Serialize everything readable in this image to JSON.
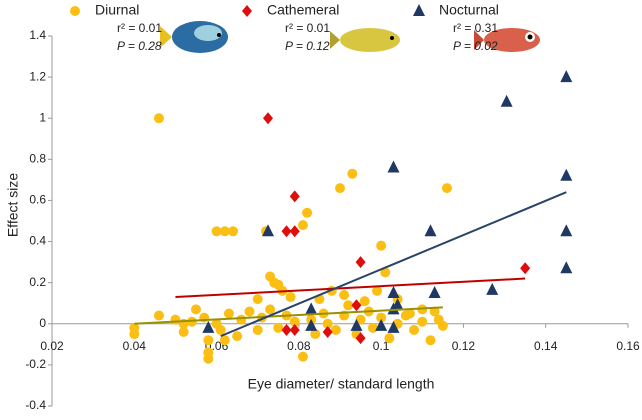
{
  "chart_data": {
    "type": "scatter",
    "x_label": "Eye diameter/ standard length",
    "y_label": "Effect size",
    "xlim": [
      0.02,
      0.16
    ],
    "xticks": [
      0.02,
      0.04,
      0.06,
      0.08,
      0.1,
      0.12,
      0.14,
      0.16
    ],
    "ylim": [
      -0.4,
      1.4
    ],
    "yticks": [
      -0.4,
      -0.2,
      0,
      0.2,
      0.4,
      0.6,
      0.8,
      1,
      1.2,
      1.4
    ],
    "grid": false,
    "series": [
      {
        "name": "Diurnal",
        "color": "#fbbf14",
        "marker": "circle",
        "line_color": "#9a9000",
        "annotations": [
          "r² = 0.01",
          "P = 0.28"
        ],
        "x": [
          0.046,
          0.06,
          0.062,
          0.064,
          0.072,
          0.073,
          0.074,
          0.075,
          0.076,
          0.081,
          0.082,
          0.09,
          0.093,
          0.1,
          0.101,
          0.116,
          0.07,
          0.078,
          0.085,
          0.088,
          0.091,
          0.096,
          0.099,
          0.104,
          0.11,
          0.113,
          0.107,
          0.04,
          0.04,
          0.046,
          0.05,
          0.052,
          0.052,
          0.055,
          0.057,
          0.058,
          0.058,
          0.058,
          0.06,
          0.061,
          0.063,
          0.065,
          0.066,
          0.068,
          0.07,
          0.071,
          0.073,
          0.075,
          0.077,
          0.079,
          0.081,
          0.083,
          0.084,
          0.086,
          0.087,
          0.089,
          0.091,
          0.092,
          0.094,
          0.095,
          0.097,
          0.098,
          0.1,
          0.102,
          0.104,
          0.106,
          0.108,
          0.11,
          0.112,
          0.114,
          0.115,
          0.054,
          0.062
        ],
        "values": [
          1.0,
          0.45,
          0.45,
          0.45,
          0.45,
          0.23,
          0.2,
          0.19,
          0.16,
          0.48,
          0.54,
          0.66,
          0.73,
          0.38,
          0.25,
          0.66,
          0.12,
          0.13,
          0.12,
          0.16,
          0.14,
          0.11,
          0.16,
          0.12,
          0.07,
          0.06,
          0.05,
          -0.02,
          -0.05,
          0.04,
          0.02,
          0.0,
          -0.04,
          0.07,
          0.03,
          -0.14,
          -0.17,
          -0.08,
          0.0,
          -0.03,
          0.05,
          -0.06,
          0.02,
          0.06,
          -0.03,
          0.03,
          0.07,
          -0.02,
          0.04,
          0.01,
          -0.16,
          0.02,
          -0.05,
          0.05,
          0.0,
          -0.03,
          0.04,
          0.09,
          -0.05,
          0.02,
          0.06,
          -0.02,
          0.03,
          -0.07,
          0.0,
          0.04,
          -0.03,
          0.01,
          -0.08,
          0.02,
          -0.01,
          0.01,
          -0.08
        ],
        "trend": {
          "x": [
            0.04,
            0.115
          ],
          "values": [
            0.0,
            0.08
          ]
        }
      },
      {
        "name": "Cathemeral",
        "color": "#e00d0d",
        "marker": "diamond",
        "line_color": "#c00000",
        "annotations": [
          "r² = 0.01",
          "P = 0.12"
        ],
        "x": [
          0.0725,
          0.079,
          0.077,
          0.079,
          0.095,
          0.135,
          0.077,
          0.079,
          0.087,
          0.095,
          0.094
        ],
        "values": [
          1.0,
          0.62,
          0.45,
          0.45,
          0.3,
          0.27,
          -0.03,
          -0.03,
          -0.04,
          -0.07,
          0.09
        ],
        "trend": {
          "x": [
            0.05,
            0.135
          ],
          "values": [
            0.13,
            0.22
          ]
        }
      },
      {
        "name": "Nocturnal",
        "color": "#1f3864",
        "marker": "triangle",
        "line_color": "#2a4468",
        "annotations": [
          "r² = 0.31",
          "P = 0.02"
        ],
        "x": [
          0.058,
          0.0725,
          0.083,
          0.083,
          0.094,
          0.1,
          0.103,
          0.103,
          0.103,
          0.103,
          0.104,
          0.112,
          0.113,
          0.127,
          0.1305,
          0.145,
          0.145,
          0.145,
          0.145
        ],
        "values": [
          -0.02,
          0.45,
          -0.01,
          0.07,
          -0.01,
          -0.01,
          0.76,
          0.15,
          0.07,
          -0.02,
          0.09,
          0.45,
          0.15,
          0.165,
          1.08,
          1.2,
          0.72,
          0.45,
          0.27
        ],
        "trend": {
          "x": [
            0.061,
            0.145
          ],
          "values": [
            -0.06,
            0.64
          ]
        }
      }
    ]
  }
}
